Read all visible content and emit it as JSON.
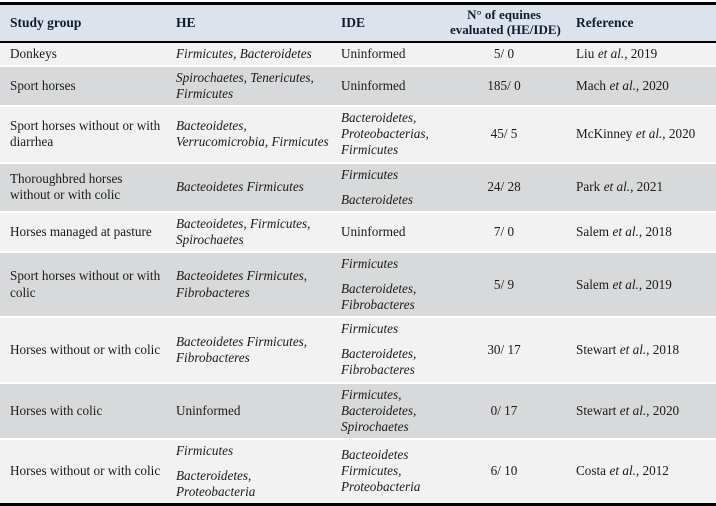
{
  "colors": {
    "header_bg": "#dce3ed",
    "row_light": "#f2f2f3",
    "row_dark": "#d8d9da",
    "border_black": "#030303",
    "separator_white": "#ffffff",
    "header_text": "#101c2c",
    "body_text": "#1a1a1a"
  },
  "table": {
    "headers": {
      "study_group": "Study group",
      "he": "HE",
      "ide": "IDE",
      "n_line1": "N° of equines",
      "n_line2": "evaluated (HE/IDE)",
      "reference": "Reference"
    },
    "rows": [
      {
        "study_group": "Donkeys",
        "he": [
          "Firmicutes, Bacteroidetes"
        ],
        "ide": [
          "Uninformed"
        ],
        "n": "5/ 0",
        "ref": {
          "author": "Liu",
          "etal": "et al.",
          "year": ", 2019"
        }
      },
      {
        "study_group": "Sport horses",
        "he": [
          "Spirochaetes, Tenericutes, Firmicutes"
        ],
        "ide": [
          "Uninformed"
        ],
        "n": "185/ 0",
        "ref": {
          "author": "Mach",
          "etal": "et al.",
          "year": ", 2020"
        }
      },
      {
        "study_group": "Sport horses without or with diarrhea",
        "he": [
          "Bacteoidetes, Verrucomicrobia, Firmicutes"
        ],
        "ide": [
          "Bacteroidetes, Proteobacterias, Firmicutes"
        ],
        "n": "45/ 5",
        "ref": {
          "author": "McKinney",
          "etal": "et al.",
          "year": ", 2020"
        }
      },
      {
        "study_group": "Thoroughbred horses without or with colic",
        "he": [
          "Bacteoidetes Firmicutes"
        ],
        "ide": [
          "Firmicutes",
          "Bacteroidetes"
        ],
        "n": "24/ 28",
        "ref": {
          "author": "Park",
          "etal": "et al.",
          "year": ", 2021"
        }
      },
      {
        "study_group": "Horses managed at pasture",
        "he": [
          "Bacteoidetes, Firmicutes, Spirochaetes"
        ],
        "ide": [
          "Uninformed"
        ],
        "n": "7/ 0",
        "ref": {
          "author": "Salem",
          "etal": "et al.",
          "year": ", 2018"
        }
      },
      {
        "study_group": "Sport horses without or with colic",
        "he": [
          "Bacteoidetes Firmicutes, Fibrobacteres"
        ],
        "ide": [
          "Firmicutes",
          "Bacteroidetes, Fibrobacteres"
        ],
        "n": "5/ 9",
        "ref": {
          "author": "Salem",
          "etal": "et al.",
          "year": ", 2019"
        }
      },
      {
        "study_group": "Horses without or with colic",
        "he": [
          "Bacteoidetes Firmicutes, Fibrobacteres"
        ],
        "ide": [
          "Firmicutes",
          "Bacteroidetes, Fibrobacteres"
        ],
        "n": "30/ 17",
        "ref": {
          "author": "Stewart",
          "etal": "et al.",
          "year": ", 2018"
        }
      },
      {
        "study_group": "Horses with colic",
        "he": [
          "Uninformed"
        ],
        "ide": [
          "Firmicutes, Bacteroidetes, Spirochaetes"
        ],
        "n": "0/ 17",
        "ref": {
          "author": "Stewart",
          "etal": "et al.",
          "year": ", 2020"
        }
      },
      {
        "study_group": "Horses without or with colic",
        "he": [
          "Firmicutes",
          "Bacteroidetes, Proteobacteria"
        ],
        "ide": [
          "Bacteoidetes Firmicutes, Proteobacteria"
        ],
        "n": "6/ 10",
        "ref": {
          "author": "Costa",
          "etal": "et al.",
          "year": ", 2012"
        }
      }
    ]
  }
}
